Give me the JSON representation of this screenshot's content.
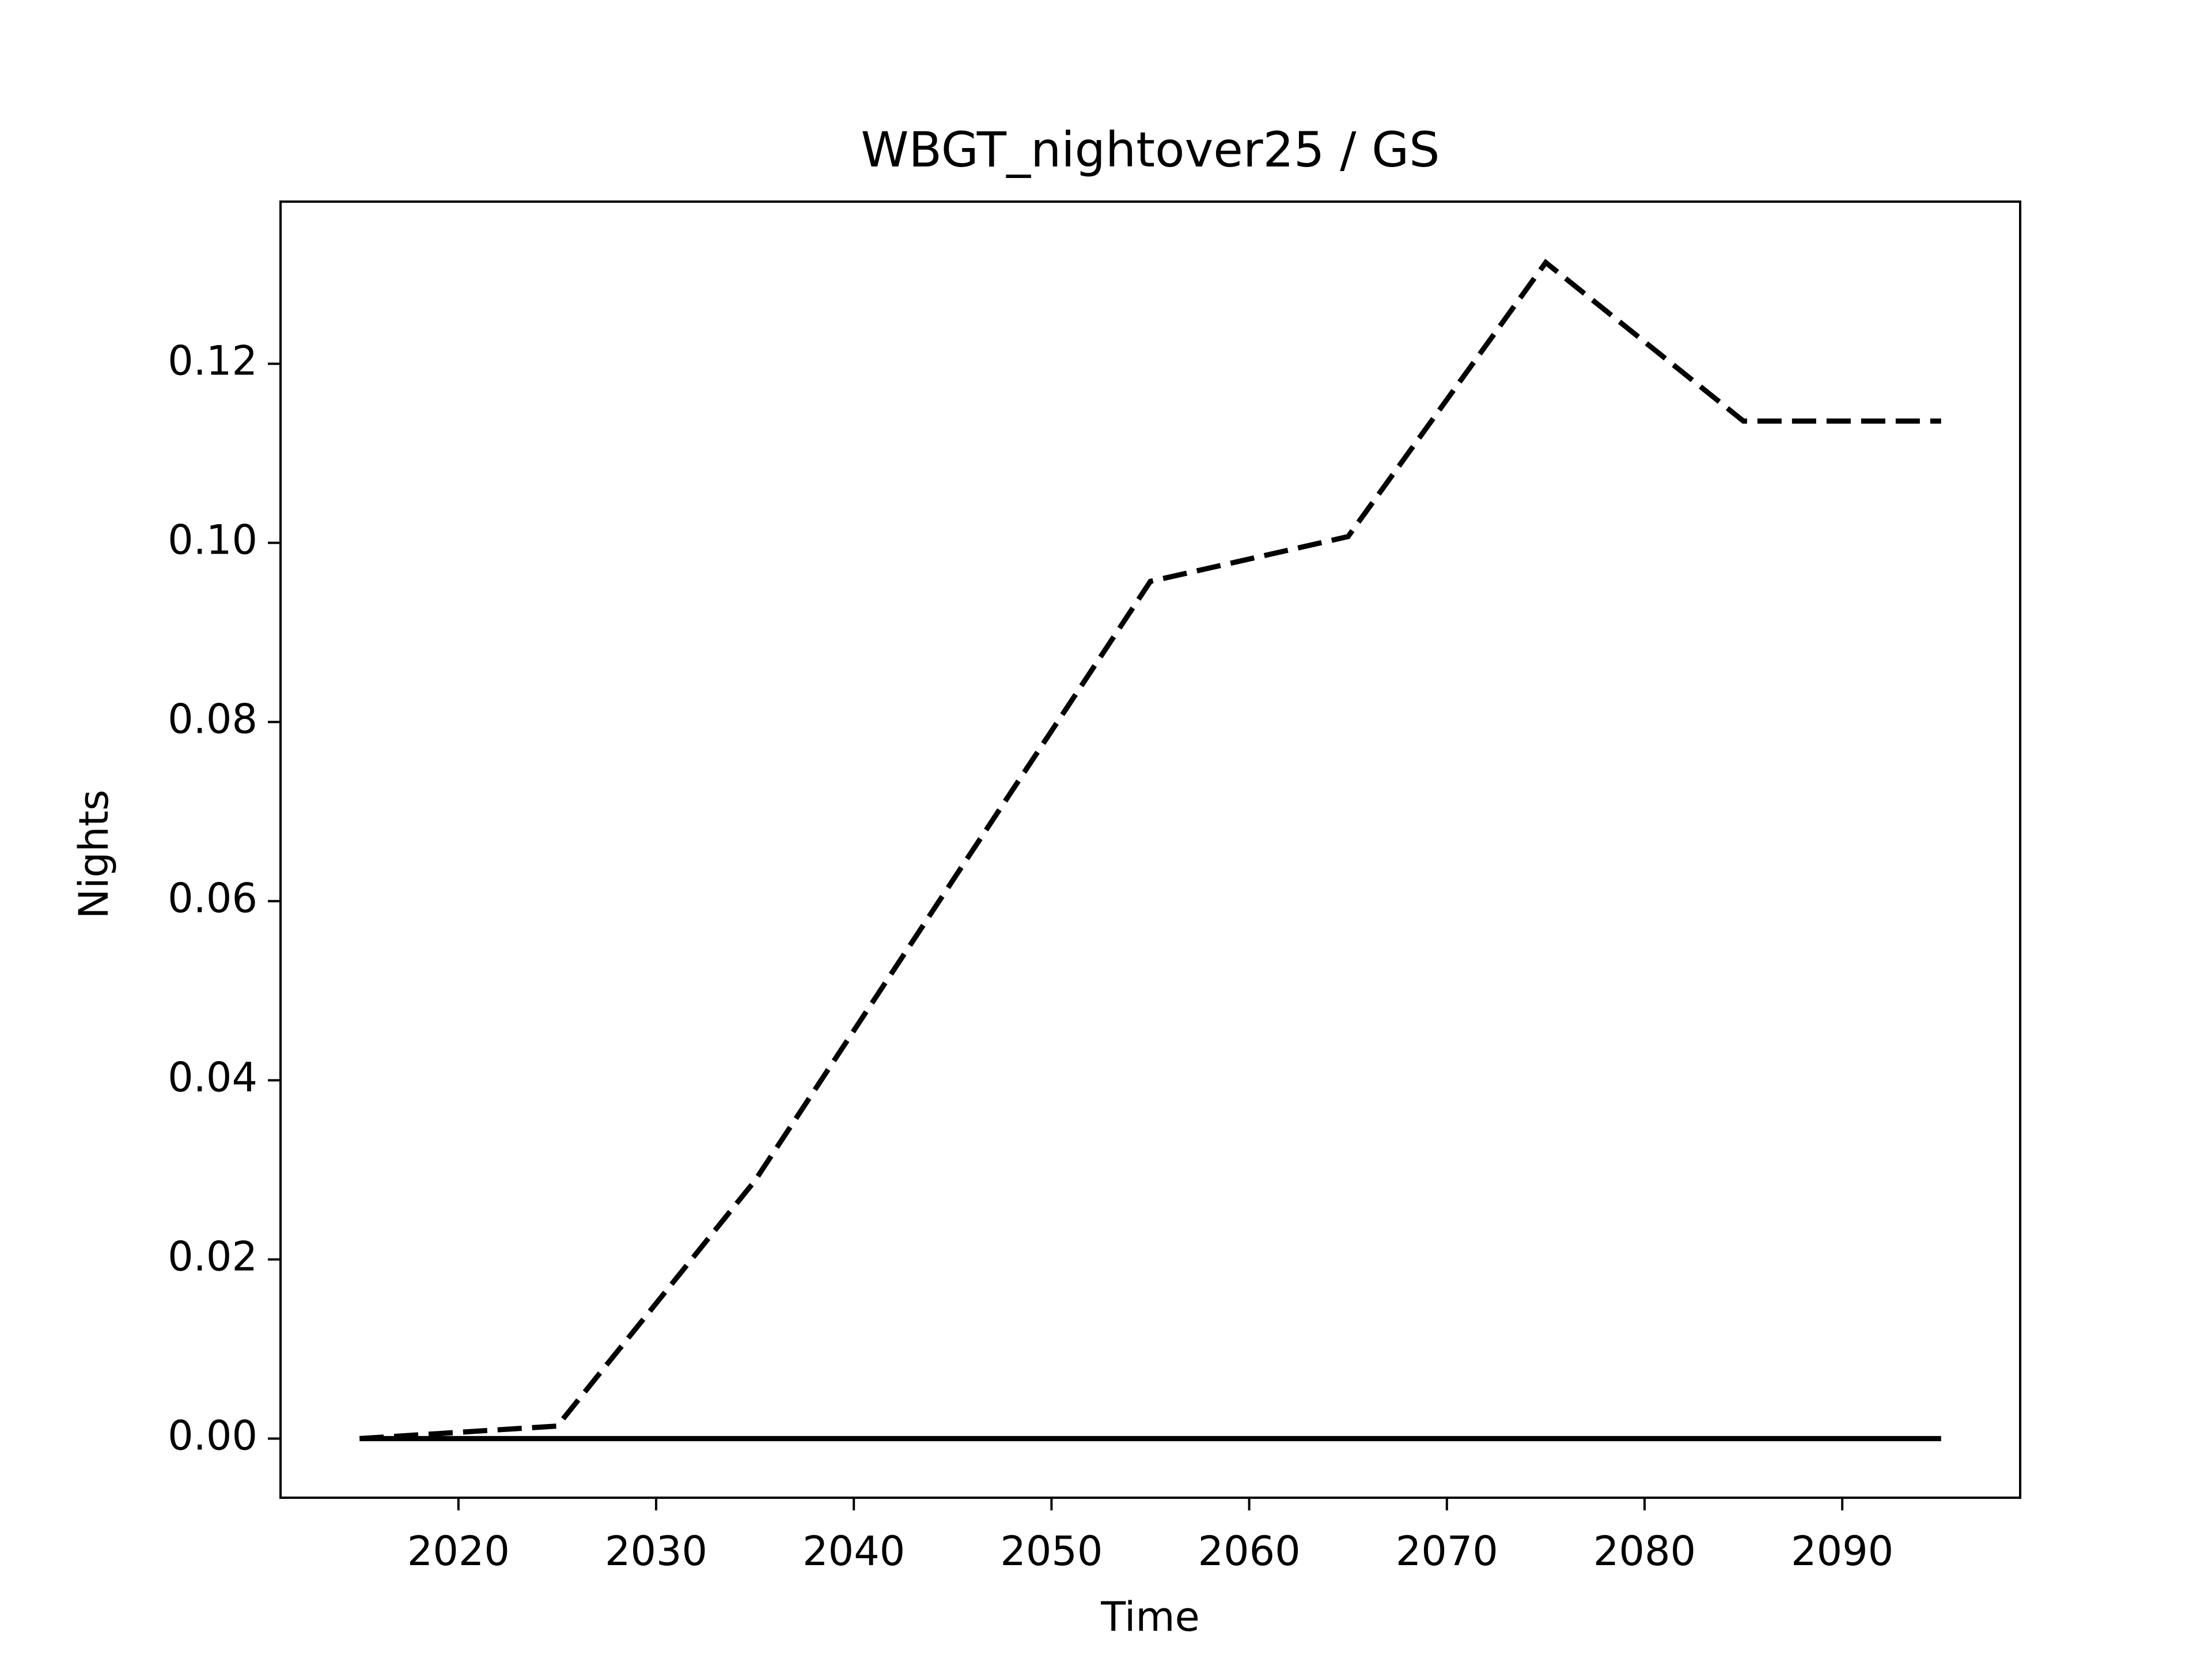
{
  "chart_data": {
    "type": "line",
    "title": "WBGT_nightover25 / GS",
    "xlabel": "Time",
    "ylabel": "Nights",
    "x": [
      2015,
      2025,
      2035,
      2045,
      2055,
      2065,
      2075,
      2085,
      2095
    ],
    "series": [
      {
        "color": "#000000",
        "linestyle": "dashed",
        "values": [
          0,
          0.0014,
          0.0288,
          0.0623,
          0.0957,
          0.1007,
          0.1313,
          0.1136,
          0.1136
        ]
      },
      {
        "color": "#000000",
        "linestyle": "solid",
        "values": [
          0,
          0,
          0,
          0,
          0,
          0,
          0,
          0,
          0
        ]
      }
    ],
    "xlim": [
      2011,
      2099
    ],
    "xticks": [
      2020,
      2030,
      2040,
      2050,
      2060,
      2070,
      2080,
      2090
    ],
    "ylim": [
      -0.0066,
      0.1381
    ],
    "yticks": [
      {
        "value": 0,
        "label": "0.00"
      },
      {
        "value": 0.02,
        "label": "0.02"
      },
      {
        "value": 0.04,
        "label": "0.04"
      },
      {
        "value": 0.06,
        "label": "0.06"
      },
      {
        "value": 0.08,
        "label": "0.08"
      },
      {
        "value": 0.1,
        "label": "0.10"
      },
      {
        "value": 0.12,
        "label": "0.12"
      }
    ],
    "grid": false
  }
}
